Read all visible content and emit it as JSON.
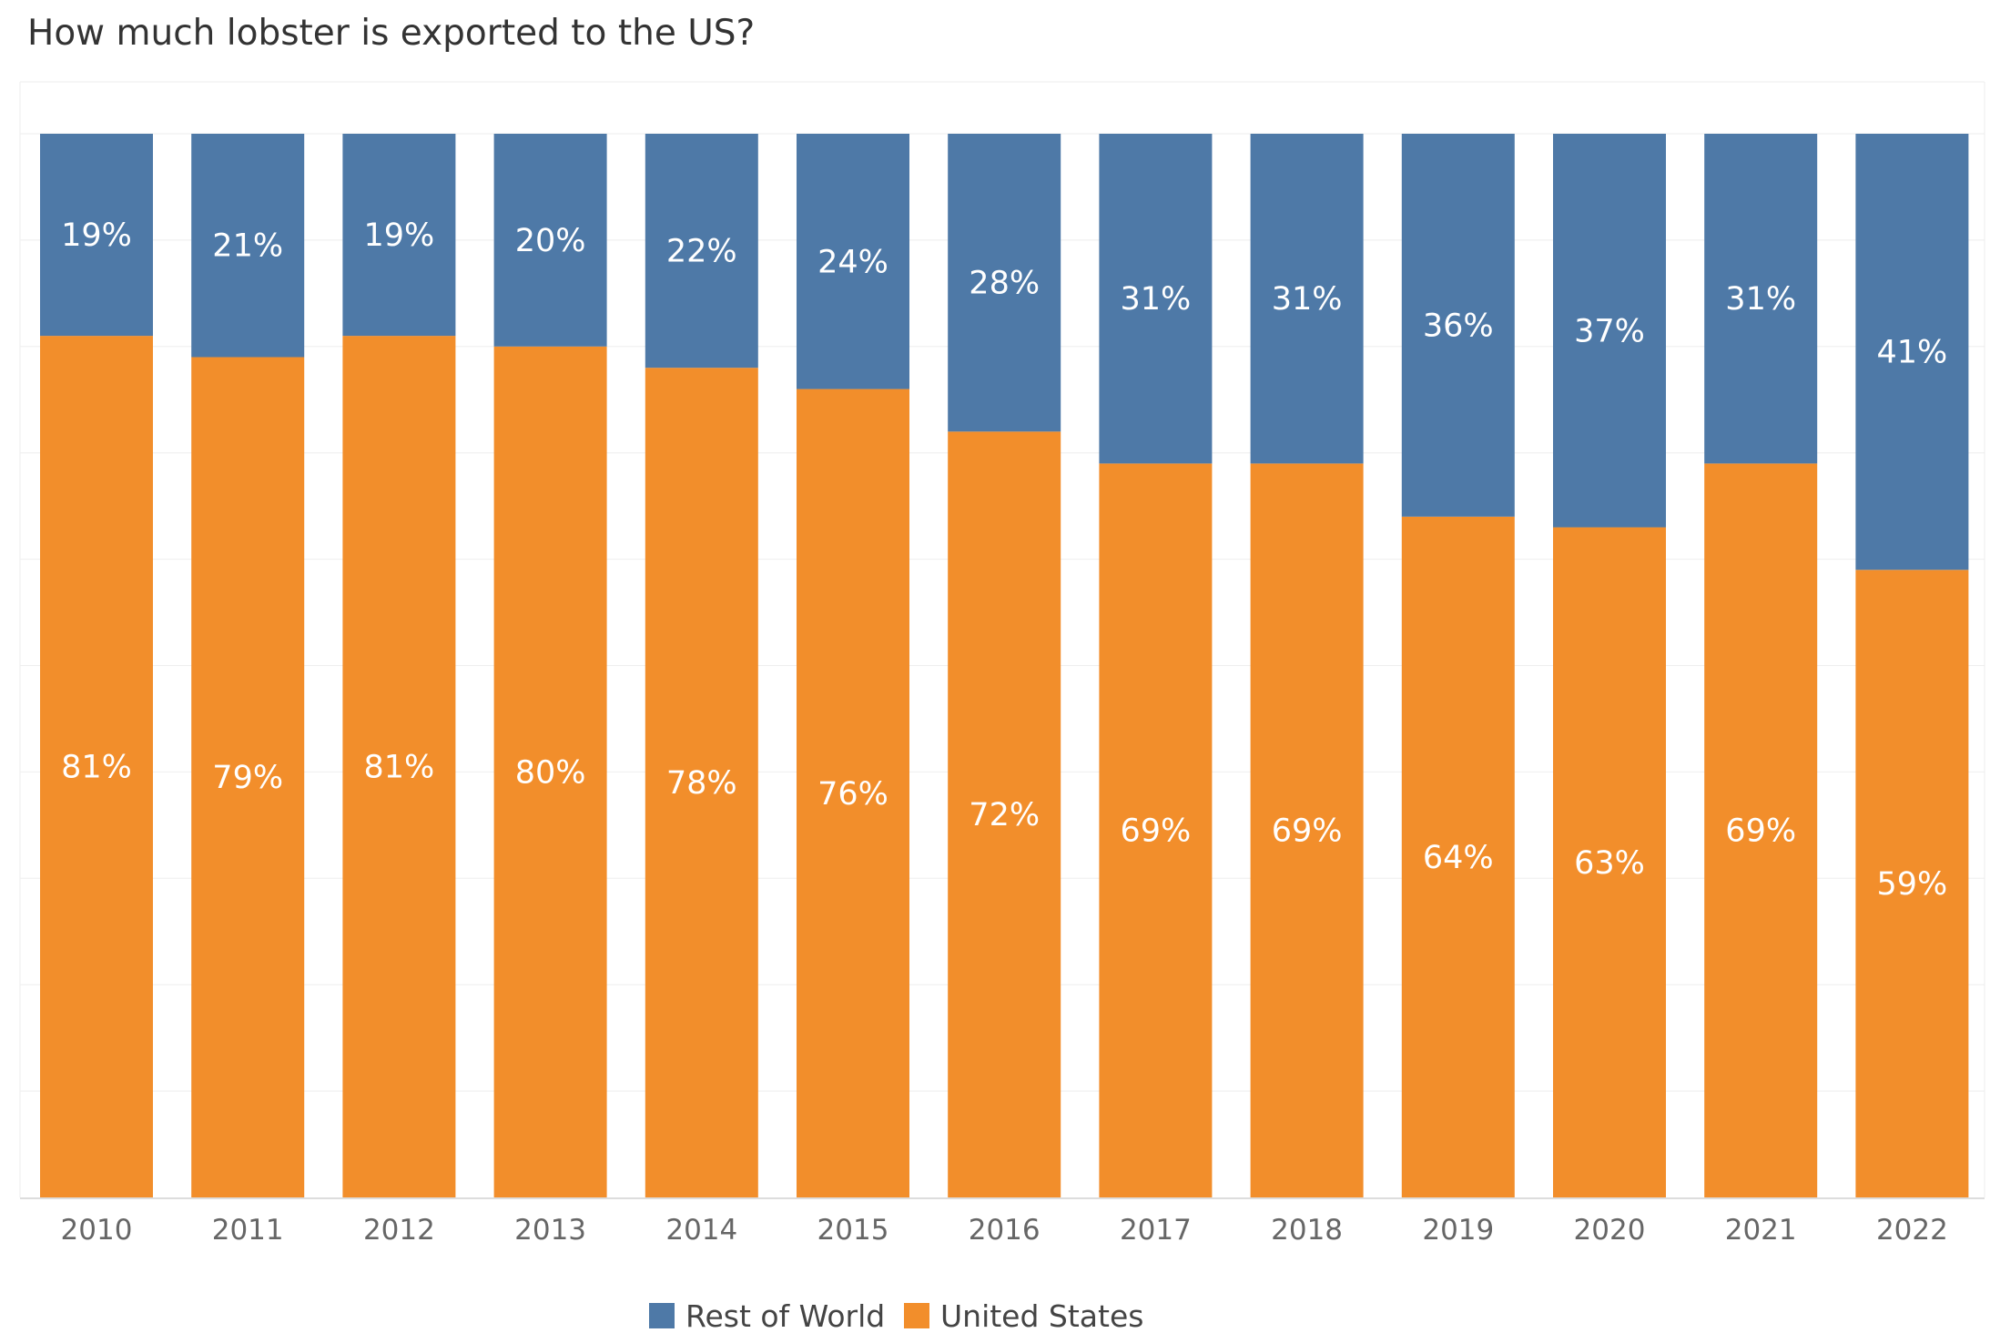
{
  "chart_data": {
    "type": "bar",
    "stacked": true,
    "title": "How much lobster is exported to the US?",
    "xlabel": "",
    "ylabel": "",
    "ylim": [
      0,
      100
    ],
    "grid": true,
    "legend_position": "bottom",
    "categories": [
      "2010",
      "2011",
      "2012",
      "2013",
      "2014",
      "2015",
      "2016",
      "2017",
      "2018",
      "2019",
      "2020",
      "2021",
      "2022"
    ],
    "series": [
      {
        "name": "United States",
        "color": "#F28E2B",
        "values": [
          81,
          79,
          81,
          80,
          78,
          76,
          72,
          69,
          69,
          64,
          63,
          69,
          59
        ],
        "labels": [
          "81%",
          "79%",
          "81%",
          "80%",
          "78%",
          "76%",
          "72%",
          "69%",
          "69%",
          "64%",
          "63%",
          "69%",
          "59%"
        ]
      },
      {
        "name": "Rest of World",
        "color": "#4E79A7",
        "values": [
          19,
          21,
          19,
          20,
          22,
          24,
          28,
          31,
          31,
          36,
          37,
          31,
          41
        ],
        "labels": [
          "19%",
          "21%",
          "19%",
          "20%",
          "22%",
          "24%",
          "28%",
          "31%",
          "31%",
          "36%",
          "37%",
          "31%",
          "41%"
        ]
      }
    ]
  },
  "legend": {
    "items": [
      {
        "label": "Rest of World",
        "color": "#4E79A7"
      },
      {
        "label": "United States",
        "color": "#F28E2B"
      }
    ]
  }
}
